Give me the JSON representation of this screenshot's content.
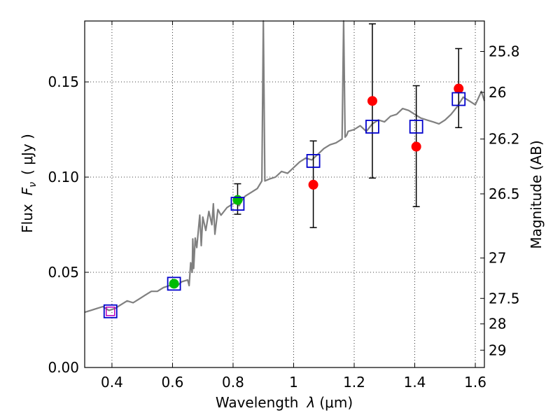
{
  "chart_data": {
    "type": "scatter",
    "title": "",
    "xlabel": "Wavelength",
    "xlabel_symbol": "λ",
    "xlabel_unit_open": "(",
    "xlabel_unit": "μm",
    "xlabel_unit_close": ")",
    "ylabel": "Flux",
    "ylabel_symbol": "F",
    "ylabel_subscript": "ν",
    "ylabel_unit": "( μJy )",
    "y2label": "Magnitude (AB)",
    "xlim": [
      0.31,
      1.63
    ],
    "ylim": [
      0.0,
      0.182
    ],
    "grid": "dotted",
    "colors": {
      "spectrum": "#808080",
      "observed": "#ff0000",
      "model": "#0000cc",
      "highlight": "#00bb00",
      "errorbar": "#000000",
      "purple_marker": "#bb00bb"
    },
    "x_ticks": [
      {
        "value": 0.4,
        "label": "0.4"
      },
      {
        "value": 0.6,
        "label": "0.6"
      },
      {
        "value": 0.8,
        "label": "0.8"
      },
      {
        "value": 1.0,
        "label": "1"
      },
      {
        "value": 1.2,
        "label": "1.2"
      },
      {
        "value": 1.4,
        "label": "1.4"
      },
      {
        "value": 1.6,
        "label": "1.6"
      }
    ],
    "y_ticks": [
      {
        "value": 0.0,
        "label": "0.00"
      },
      {
        "value": 0.05,
        "label": "0.05"
      },
      {
        "value": 0.1,
        "label": "0.10"
      },
      {
        "value": 0.15,
        "label": "0.15"
      }
    ],
    "mag_ticks": [
      {
        "flux": 0.166,
        "label": "25.8"
      },
      {
        "flux": 0.1445,
        "label": "26"
      },
      {
        "flux": 0.12,
        "label": "26.2"
      },
      {
        "flux": 0.0912,
        "label": "26.5"
      },
      {
        "flux": 0.0575,
        "label": "27"
      },
      {
        "flux": 0.0363,
        "label": "27.5"
      },
      {
        "flux": 0.0229,
        "label": "28"
      },
      {
        "flux": 0.0091,
        "label": "29"
      }
    ],
    "observed_points": [
      {
        "x": 1.065,
        "y": 0.096,
        "err_low": 0.0735,
        "err_high": 0.119
      },
      {
        "x": 1.26,
        "y": 0.14,
        "err_low": 0.0995,
        "err_high": 0.1805
      },
      {
        "x": 1.405,
        "y": 0.116,
        "err_low": 0.0845,
        "err_high": 0.148
      },
      {
        "x": 1.545,
        "y": 0.1465,
        "err_low": 0.126,
        "err_high": 0.1675
      }
    ],
    "highlight_points": [
      {
        "x": 0.815,
        "y": 0.088,
        "err_low": 0.0805,
        "err_high": 0.0965
      },
      {
        "x": 0.605,
        "y": 0.044
      }
    ],
    "model_points": [
      {
        "x": 0.395,
        "y": 0.0295
      },
      {
        "x": 0.605,
        "y": 0.044
      },
      {
        "x": 0.815,
        "y": 0.086
      },
      {
        "x": 1.065,
        "y": 0.1085
      },
      {
        "x": 1.26,
        "y": 0.1265
      },
      {
        "x": 1.405,
        "y": 0.1265
      },
      {
        "x": 1.545,
        "y": 0.141
      }
    ],
    "purple_points": [
      {
        "x": 0.395,
        "y": 0.0295
      }
    ],
    "spectrum": {
      "x": [
        0.31,
        0.33,
        0.35,
        0.37,
        0.39,
        0.41,
        0.43,
        0.45,
        0.47,
        0.49,
        0.51,
        0.53,
        0.55,
        0.57,
        0.59,
        0.61,
        0.63,
        0.65,
        0.655,
        0.66,
        0.665,
        0.667,
        0.67,
        0.675,
        0.68,
        0.69,
        0.695,
        0.7,
        0.71,
        0.72,
        0.73,
        0.735,
        0.74,
        0.75,
        0.76,
        0.77,
        0.78,
        0.79,
        0.8,
        0.81,
        0.82,
        0.83,
        0.84,
        0.86,
        0.88,
        0.895,
        0.9,
        0.905,
        0.92,
        0.94,
        0.96,
        0.98,
        1.0,
        1.02,
        1.04,
        1.06,
        1.08,
        1.1,
        1.12,
        1.14,
        1.16,
        1.165,
        1.17,
        1.175,
        1.18,
        1.2,
        1.22,
        1.24,
        1.26,
        1.28,
        1.3,
        1.32,
        1.34,
        1.36,
        1.38,
        1.4,
        1.42,
        1.44,
        1.46,
        1.48,
        1.5,
        1.52,
        1.54,
        1.56,
        1.58,
        1.6,
        1.62,
        1.63
      ],
      "y": [
        0.029,
        0.03,
        0.031,
        0.032,
        0.03,
        0.031,
        0.033,
        0.035,
        0.034,
        0.036,
        0.038,
        0.04,
        0.04,
        0.042,
        0.043,
        0.042,
        0.045,
        0.046,
        0.043,
        0.055,
        0.05,
        0.0675,
        0.052,
        0.068,
        0.063,
        0.08,
        0.064,
        0.079,
        0.072,
        0.082,
        0.075,
        0.086,
        0.07,
        0.083,
        0.08,
        0.082,
        0.084,
        0.085,
        0.086,
        0.087,
        0.085,
        0.088,
        0.09,
        0.092,
        0.094,
        0.098,
        0.182,
        0.098,
        0.099,
        0.1,
        0.103,
        0.102,
        0.105,
        0.108,
        0.11,
        0.109,
        0.112,
        0.115,
        0.117,
        0.118,
        0.12,
        0.182,
        0.121,
        0.122,
        0.124,
        0.125,
        0.127,
        0.124,
        0.128,
        0.13,
        0.129,
        0.132,
        0.133,
        0.136,
        0.135,
        0.133,
        0.131,
        0.13,
        0.129,
        0.128,
        0.13,
        0.133,
        0.137,
        0.142,
        0.14,
        0.138,
        0.145,
        0.14
      ]
    }
  }
}
